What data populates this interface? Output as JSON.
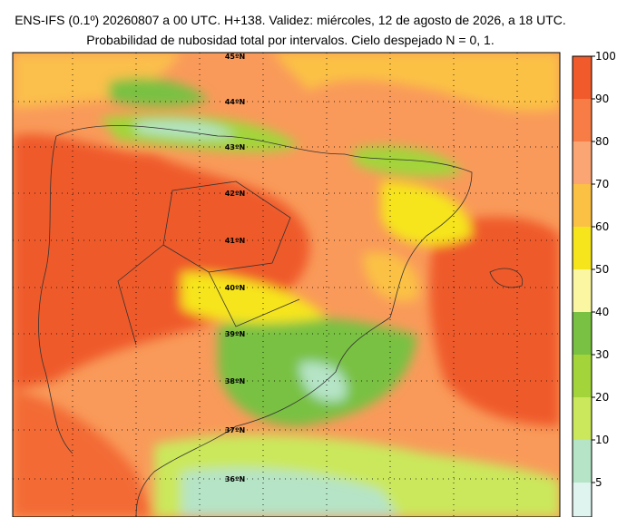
{
  "header": {
    "line1": "ENS-IFS (0.1º) 20260807 a 00 UTC. H+138. Validez: miércoles, 12 de agosto de 2026, a 18 UTC.",
    "line2": "Probabilidad de nubosidad total por intervalos. Cielo despejado N = 0, 1."
  },
  "map": {
    "lat_labels": [
      "45ºN",
      "44ºN",
      "43ºN",
      "42ºN",
      "41ºN",
      "40ºN",
      "39ºN",
      "38ºN",
      "37ºN",
      "36ºN"
    ]
  },
  "colorbar": {
    "ticks": [
      100,
      90,
      80,
      70,
      60,
      50,
      40,
      30,
      20,
      10,
      5
    ],
    "colors": [
      "#f15a2b",
      "#f77c45",
      "#fba474",
      "#fbc145",
      "#f6e51c",
      "#faf6a2",
      "#79c142",
      "#a3d53a",
      "#cbe85c",
      "#b5e4c6",
      "#dff4ef"
    ]
  }
}
